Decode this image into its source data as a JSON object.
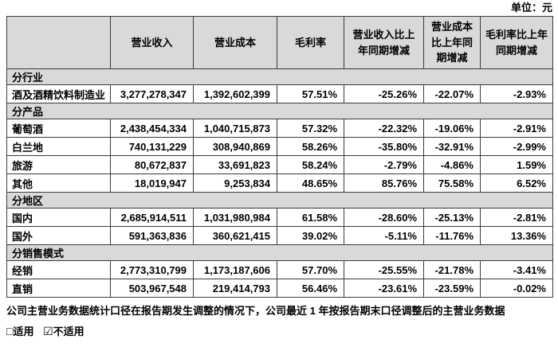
{
  "unit_label": "单位：元",
  "table": {
    "columns": [
      "",
      "营业收入",
      "营业成本",
      "毛利率",
      "营业收入比上年同期增减",
      "营业成本比上年同期增减",
      "毛利率比上年同期增减"
    ],
    "sections": [
      {
        "title": "分行业",
        "rows": [
          [
            "酒及酒精饮料制造业",
            "3,277,278,347",
            "1,392,602,399",
            "57.51%",
            "-25.26%",
            "-22.07%",
            "-2.93%"
          ]
        ]
      },
      {
        "title": "分产品",
        "rows": [
          [
            "葡萄酒",
            "2,438,454,334",
            "1,040,715,873",
            "57.32%",
            "-22.32%",
            "-19.06%",
            "-2.91%"
          ],
          [
            "白兰地",
            "740,131,229",
            "308,940,869",
            "58.26%",
            "-35.80%",
            "-32.91%",
            "-2.99%"
          ],
          [
            "旅游",
            "80,672,837",
            "33,691,823",
            "58.24%",
            "-2.79%",
            "-4.86%",
            "1.59%"
          ],
          [
            "其他",
            "18,019,947",
            "9,253,834",
            "48.65%",
            "85.76%",
            "75.58%",
            "6.52%"
          ]
        ]
      },
      {
        "title": "分地区",
        "rows": [
          [
            "国内",
            "2,685,914,511",
            "1,031,980,984",
            "61.58%",
            "-28.60%",
            "-25.13%",
            "-2.81%"
          ],
          [
            "国外",
            "591,363,836",
            "360,621,415",
            "39.02%",
            "-5.11%",
            "-11.76%",
            "13.36%"
          ]
        ]
      },
      {
        "title": "分销售模式",
        "rows": [
          [
            "经销",
            "2,773,310,799",
            "1,173,187,606",
            "57.70%",
            "-25.55%",
            "-21.78%",
            "-3.41%"
          ],
          [
            "直销",
            "503,967,548",
            "219,414,793",
            "56.46%",
            "-23.61%",
            "-23.59%",
            "-0.02%"
          ]
        ]
      }
    ]
  },
  "footnote": "公司主营业务数据统计口径在报告期发生调整的情况下，公司最近 1 年按报告期末口径调整后的主营业务数据",
  "applicability": {
    "unchecked_symbol": "□",
    "checked_symbol": "☑",
    "applicable_label": "适用",
    "not_applicable_label": "不适用"
  }
}
